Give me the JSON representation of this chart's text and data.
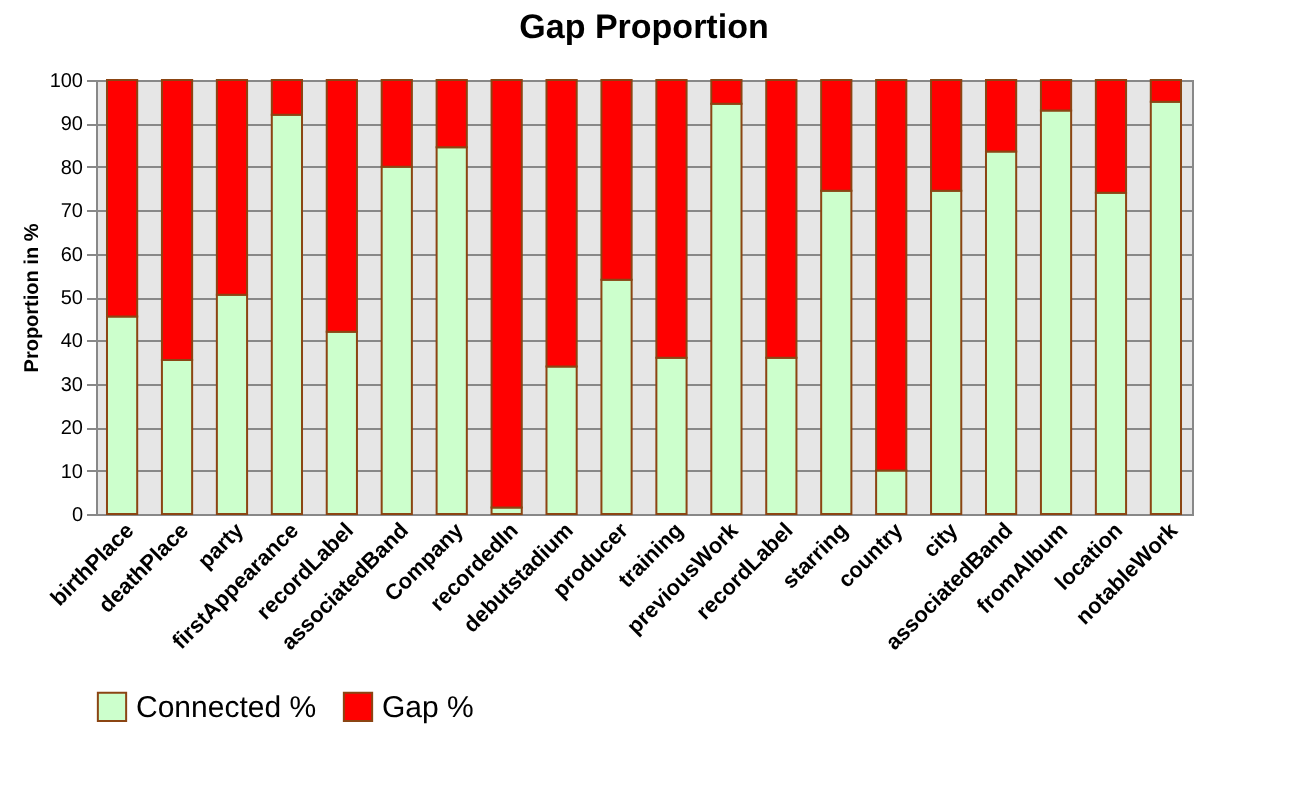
{
  "chart_data": {
    "type": "bar",
    "title": "Gap Proportion",
    "ylabel": "Proportion in %",
    "stacked": true,
    "categories": [
      "birthPlace",
      "deathPlace",
      "party",
      "firstAppearance",
      "recordLabel",
      "associatedBand",
      "Company",
      "recordedIn",
      "debutstadium",
      "producer",
      "training",
      "previousWork",
      "recordLabel",
      "starring",
      "country",
      "city",
      "associatedBand",
      "fromAlbum",
      "location",
      "notableWork"
    ],
    "series": [
      {
        "name": "Connected %",
        "color": "#ccffcc",
        "values": [
          45.5,
          35.5,
          50.5,
          92,
          42,
          80,
          84.5,
          1.5,
          34,
          54,
          36,
          94.5,
          36,
          74.5,
          10,
          74.5,
          83.5,
          93,
          74,
          95
        ]
      },
      {
        "name": "Gap %",
        "color": "#ff0000",
        "values": [
          54.5,
          64.5,
          49.5,
          8,
          58,
          20,
          15.5,
          98.5,
          66,
          46,
          64,
          5.5,
          64,
          25.5,
          90,
          25.5,
          16.5,
          7,
          26,
          5
        ]
      }
    ],
    "ylim": [
      0,
      100
    ],
    "yticks": [
      0,
      10,
      20,
      30,
      40,
      50,
      60,
      70,
      80,
      90,
      100
    ],
    "grid": "y",
    "legend": "bottom"
  }
}
